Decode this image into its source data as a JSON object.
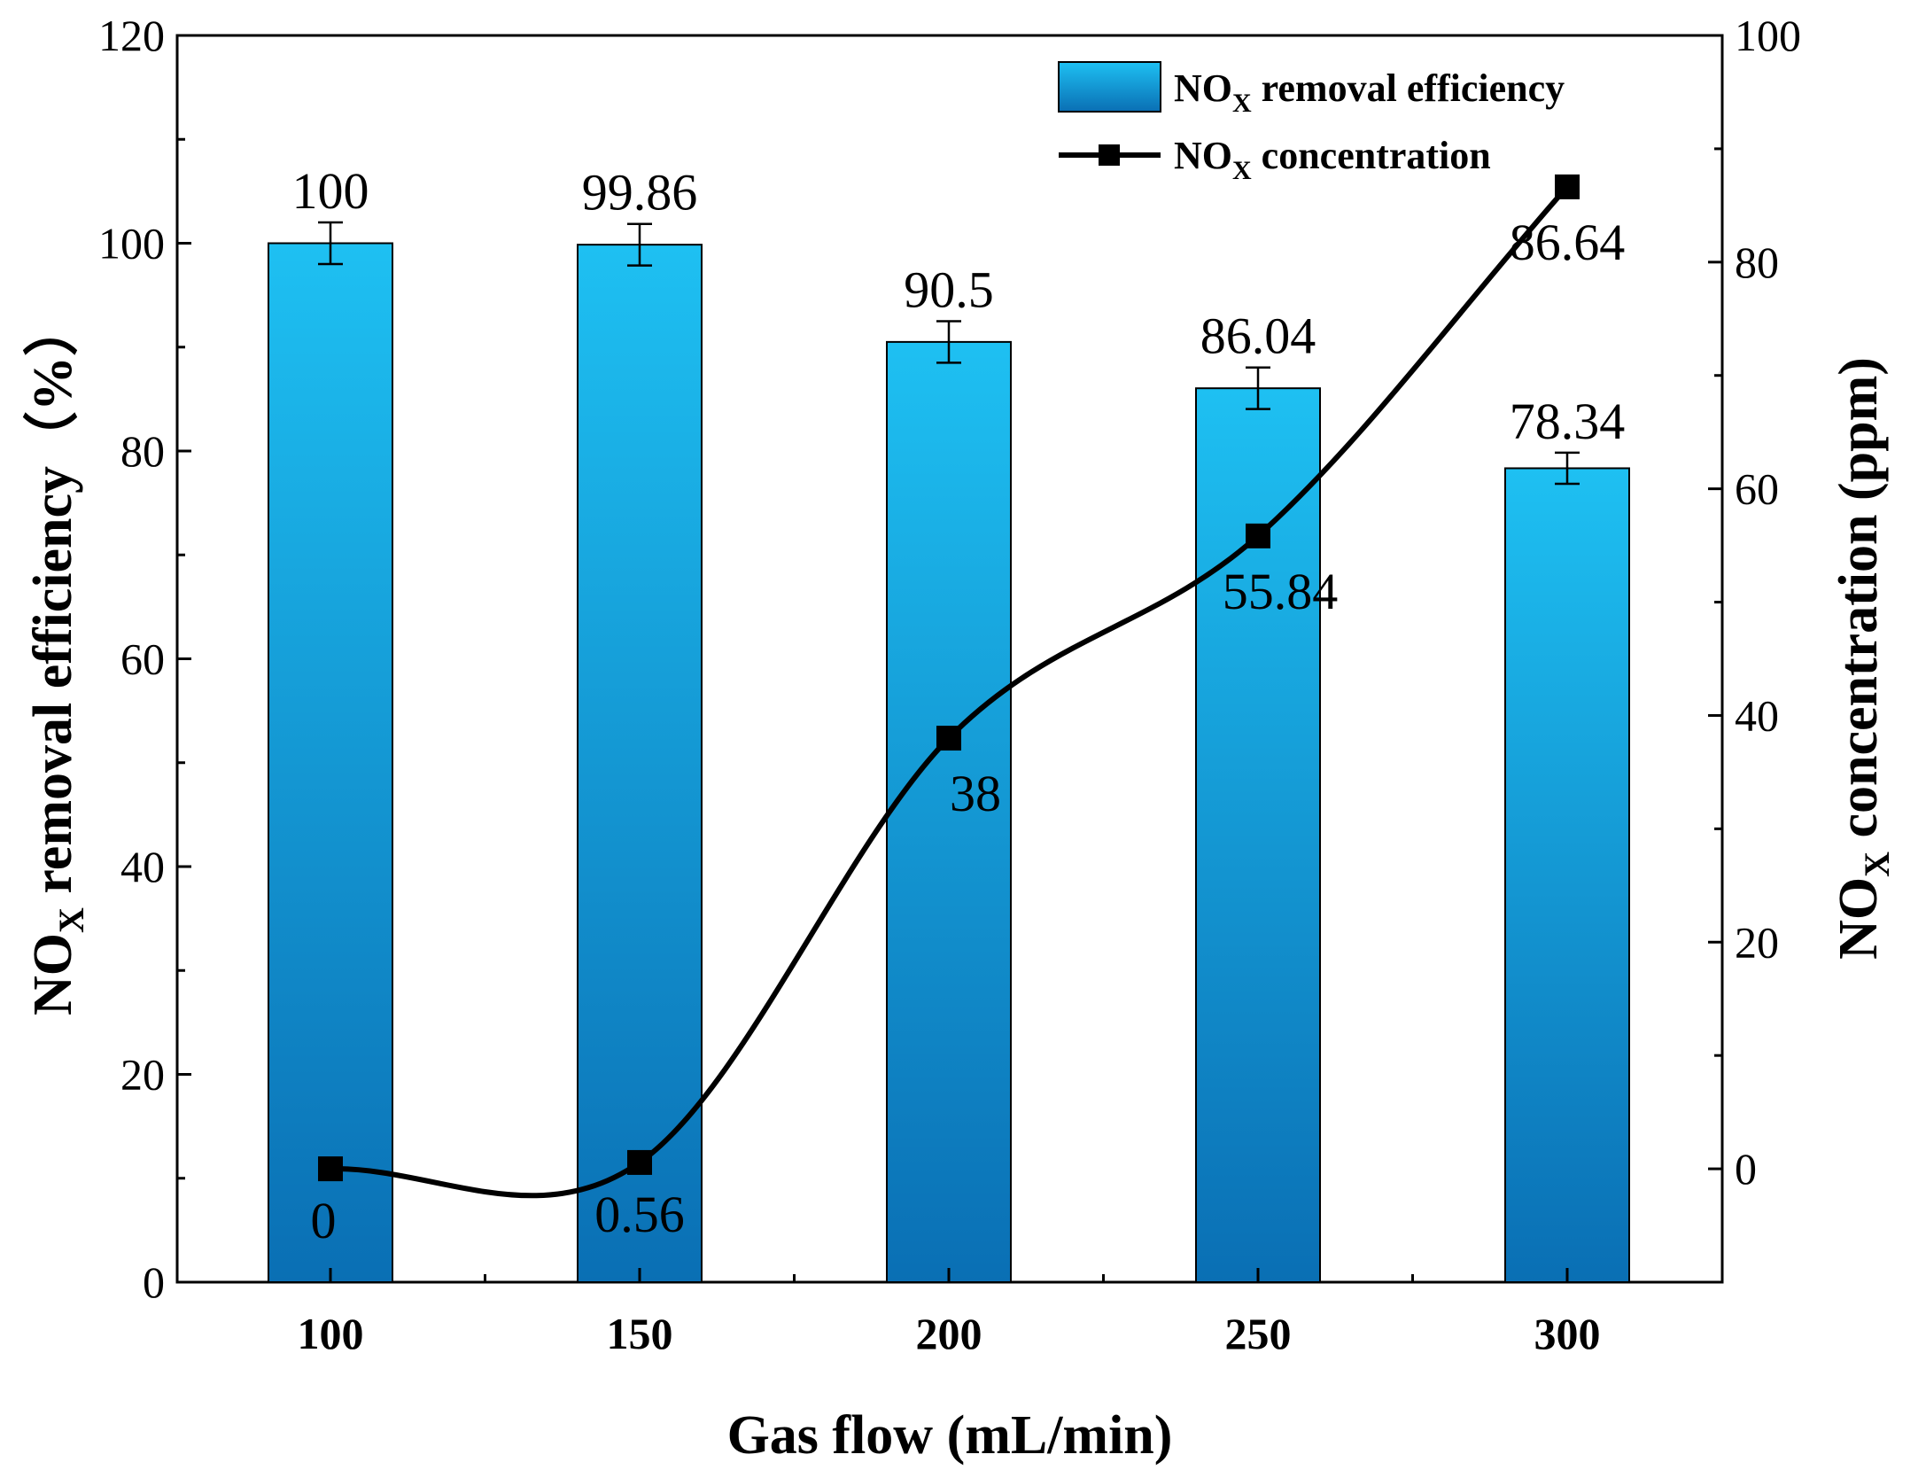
{
  "chart_data": {
    "type": "bar+line",
    "title": "",
    "categories": [
      "100",
      "150",
      "200",
      "250",
      "300"
    ],
    "xlabel": "Gas flow (mL/min)",
    "y_left": {
      "label_main": "NO",
      "label_sub": "X",
      "label_rest": " removal efficiency（%）",
      "ylim": [
        0,
        120
      ],
      "ticks": [
        0,
        20,
        40,
        60,
        80,
        100,
        120
      ]
    },
    "y_right": {
      "label_main": "NO",
      "label_sub": "X",
      "label_rest": " concentration (ppm)",
      "ylim": [
        -10,
        100
      ],
      "ticks": [
        0,
        20,
        40,
        60,
        80,
        100
      ]
    },
    "series": [
      {
        "name_main": "NO",
        "name_sub": "X",
        "name_rest": " removal efficiency",
        "kind": "bar",
        "axis": "left",
        "values": [
          100,
          99.86,
          90.5,
          86.04,
          78.34
        ],
        "labels": [
          "100",
          "99.86",
          "90.5",
          "86.04",
          "78.34"
        ],
        "errors": [
          2,
          2,
          2,
          2,
          1.5
        ]
      },
      {
        "name_main": "NO",
        "name_sub": "X",
        "name_rest": " concentration",
        "kind": "line",
        "axis": "right",
        "values": [
          0,
          0.56,
          38,
          55.84,
          86.64
        ],
        "labels": [
          "0",
          "0.56",
          "38",
          "55.84",
          "86.64"
        ]
      }
    ],
    "legend_position": "top-right",
    "colors": {
      "bar_light": "#1ec0f2",
      "bar_dark": "#0a6fb4",
      "line": "#000000"
    }
  }
}
